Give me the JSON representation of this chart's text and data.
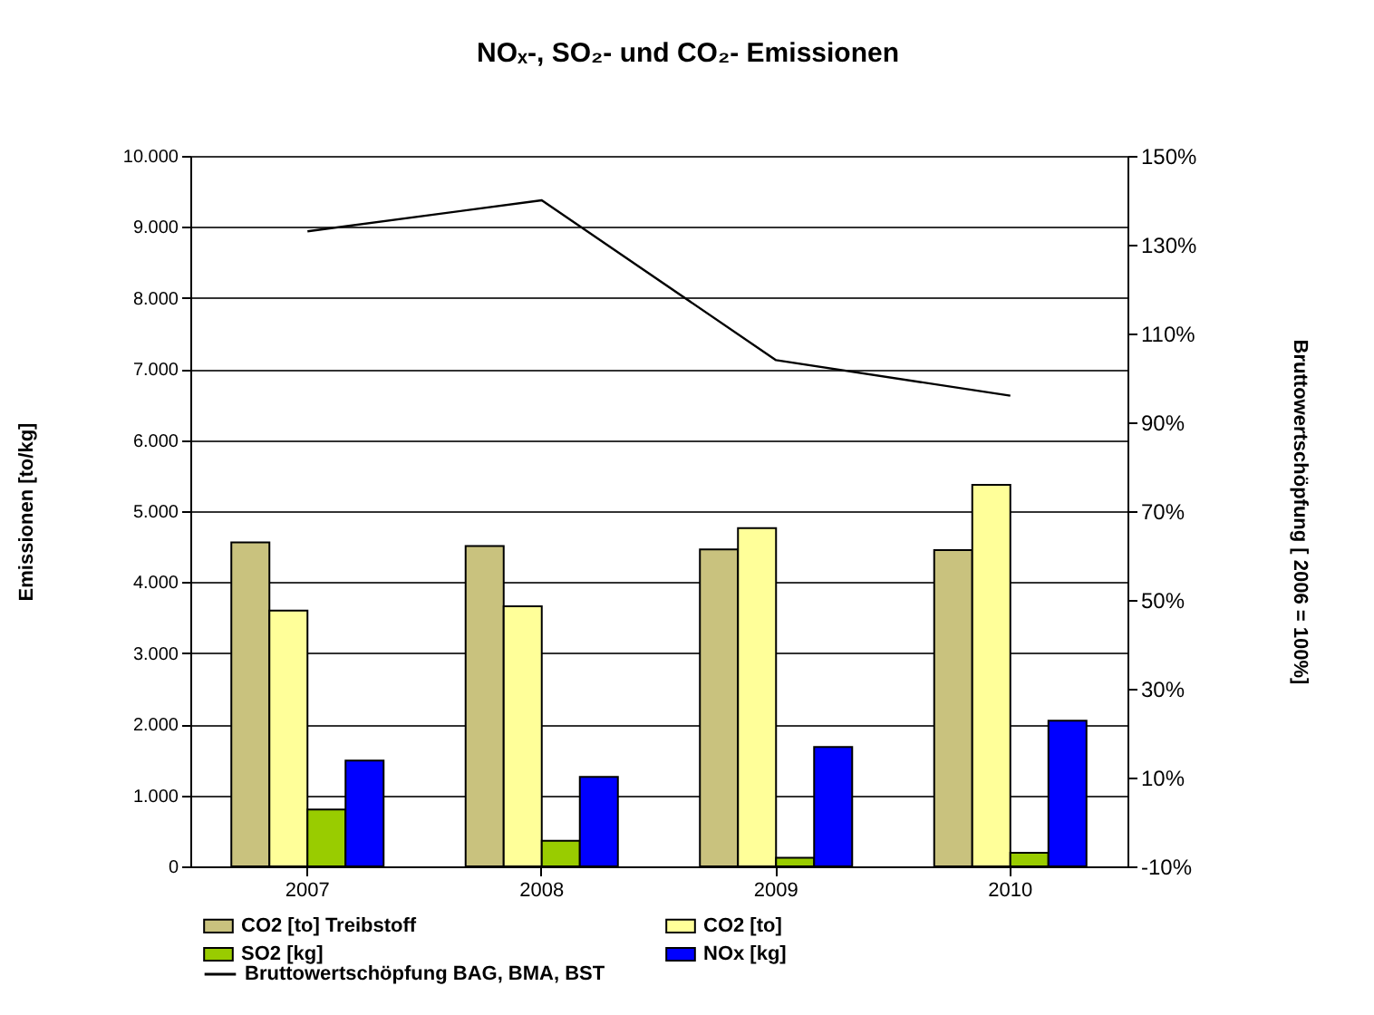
{
  "chart_data": {
    "type": "bar",
    "title": "NOₓ-, SO₂- und CO₂- Emissionen",
    "ylabel": "Emissionen [to/kg]",
    "y2label": "Bruttowertschöpfung [ 2006 = 100%]",
    "categories": [
      "2007",
      "2008",
      "2009",
      "2010"
    ],
    "series": [
      {
        "name": "CO2 [to] Treibstoff",
        "color": "#c9c27e",
        "values": [
          4560,
          4510,
          4460,
          4450
        ]
      },
      {
        "name": "CO2 [to]",
        "color": "#ffff99",
        "values": [
          3600,
          3660,
          4760,
          5370
        ]
      },
      {
        "name": "SO2 [kg]",
        "color": "#99cc00",
        "values": [
          800,
          360,
          120,
          190
        ]
      },
      {
        "name": "NOx [kg]",
        "color": "#0000ff",
        "values": [
          1490,
          1260,
          1680,
          2050
        ]
      },
      {
        "name": "Bruttowertschöpfung BAG, BMA, BST",
        "type": "line",
        "axis": "y2",
        "color": "#000000",
        "values": [
          133,
          140,
          104,
          96
        ]
      }
    ],
    "ylim": [
      0,
      10000
    ],
    "yticks": [
      {
        "value": 0,
        "label": "0"
      },
      {
        "value": 1000,
        "label": "1.000"
      },
      {
        "value": 2000,
        "label": "2.000"
      },
      {
        "value": 3000,
        "label": "3.000"
      },
      {
        "value": 4000,
        "label": "4.000"
      },
      {
        "value": 5000,
        "label": "5.000"
      },
      {
        "value": 6000,
        "label": "6.000"
      },
      {
        "value": 7000,
        "label": "7.000"
      },
      {
        "value": 8000,
        "label": "8.000"
      },
      {
        "value": 9000,
        "label": "9.000"
      },
      {
        "value": 10000,
        "label": "10.000"
      }
    ],
    "y2lim": [
      -10,
      150
    ],
    "y2ticks": [
      {
        "value": -10,
        "label": "-10%"
      },
      {
        "value": 10,
        "label": "10%"
      },
      {
        "value": 30,
        "label": "30%"
      },
      {
        "value": 50,
        "label": "50%"
      },
      {
        "value": 70,
        "label": "70%"
      },
      {
        "value": 90,
        "label": "90%"
      },
      {
        "value": 110,
        "label": "110%"
      },
      {
        "value": 130,
        "label": "130%"
      },
      {
        "value": 150,
        "label": "150%"
      }
    ],
    "grid": "y",
    "legend": "bottom left",
    "marker": "none",
    "line_style": "solid"
  }
}
